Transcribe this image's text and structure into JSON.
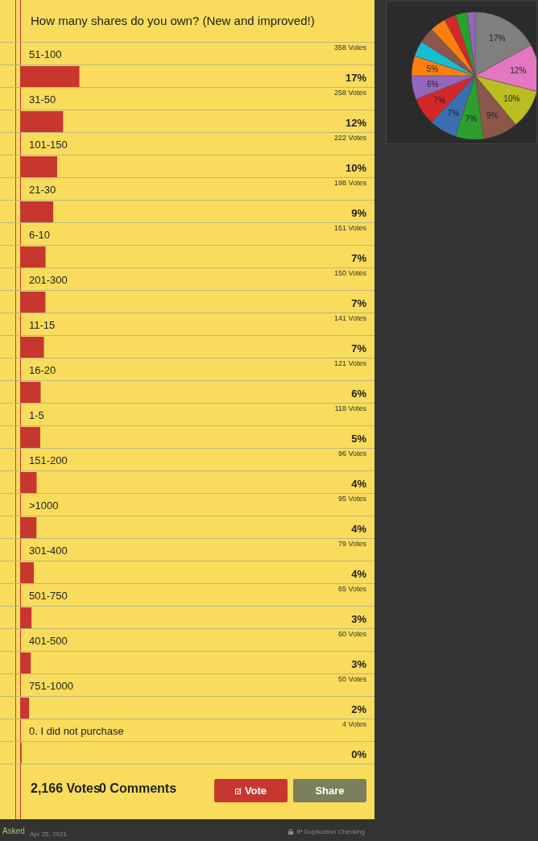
{
  "chart_data": [
    {
      "type": "bar",
      "orientation": "horizontal",
      "title": "How many shares do you own? (New and improved!)",
      "categories": [
        "51-100",
        "31-50",
        "101-150",
        "21-30",
        "6-10",
        "201-300",
        "11-15",
        "16-20",
        "1-5",
        "151-200",
        ">1000",
        "301-400",
        "501-750",
        "401-500",
        "751-1000",
        "0. I did not purchase"
      ],
      "values": [
        358,
        258,
        222,
        198,
        151,
        150,
        141,
        121,
        118,
        96,
        95,
        79,
        65,
        60,
        50,
        4
      ],
      "value_labels": [
        "358 Votes",
        "258 Votes",
        "222 Votes",
        "198 Votes",
        "151 Votes",
        "150 Votes",
        "141 Votes",
        "121 Votes",
        "118 Votes",
        "96 Votes",
        "95 Votes",
        "79 Votes",
        "65 Votes",
        "60 Votes",
        "50 Votes",
        "4 Votes"
      ],
      "color": "#c8372f",
      "grid": false,
      "legend": false,
      "annotations": [
        "17%",
        "12%",
        "10%",
        "9%",
        "7%",
        "7%",
        "7%",
        "6%",
        "5%",
        "4%",
        "4%",
        "4%",
        "3%",
        "3%",
        "2%",
        "0%",
        "2,166 Votes",
        "0 Comments",
        "Vote",
        "Share",
        "Asked",
        "Apr 25, 2021",
        "IP Duplication Checking"
      ]
    },
    {
      "type": "pie",
      "categories": [
        null,
        null,
        null,
        null,
        null,
        null,
        null,
        null,
        null,
        null,
        null,
        null,
        null,
        null,
        null,
        null
      ],
      "values": [
        17,
        12,
        10,
        9,
        7,
        7,
        7,
        6,
        5,
        4,
        4,
        4,
        3,
        3,
        2,
        0
      ],
      "colors": [
        "#7f7f7f",
        "#e377c2",
        "#bcbd22",
        "#8c564b",
        "#2ca02c",
        "#3a6fb0",
        "#d62728",
        "#9467bd",
        "#ff7f0e",
        "#17becf",
        "#8c564b",
        "#ff7f0e",
        "#d62728",
        "#2ca02c",
        "#9467bd",
        "#3a6fb0"
      ],
      "value_labels": [
        "17%",
        "12%",
        "10%",
        "9%",
        "7%",
        "7%",
        "7%",
        "6%",
        "5%",
        null,
        null,
        null,
        null,
        null,
        null,
        null
      ],
      "legend": false
    }
  ]
}
